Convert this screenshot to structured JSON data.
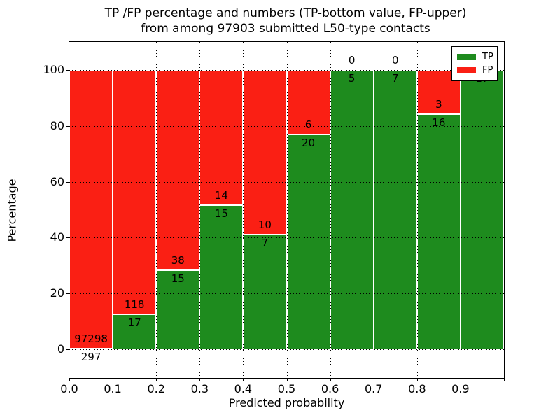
{
  "title": {
    "line1": "TP /FP percentage and numbers (TP-bottom value, FP-upper)",
    "line2": "from among 97903 submitted L50-type contacts"
  },
  "chart_data": {
    "type": "bar",
    "stacked": true,
    "normalized_to_percent": true,
    "title": "TP /FP percentage and numbers (TP-bottom value, FP-upper) from among 97903 submitted L50-type contacts",
    "xlabel": "Predicted probability",
    "ylabel": "Percentage",
    "bin_edges": [
      0.0,
      0.1,
      0.2,
      0.3,
      0.4,
      0.5,
      0.6,
      0.7,
      0.8,
      0.9,
      1.0
    ],
    "series": [
      {
        "name": "TP",
        "color": "#1e8b1e",
        "values": [
          297,
          17,
          15,
          15,
          7,
          20,
          5,
          7,
          16,
          17
        ]
      },
      {
        "name": "FP",
        "color": "#fa1f14",
        "values": [
          97298,
          118,
          38,
          14,
          10,
          6,
          0,
          0,
          3,
          0
        ]
      }
    ],
    "tp_percent_per_bin": [
      0.3,
      12.6,
      28.3,
      51.7,
      41.2,
      76.9,
      100,
      100,
      84.2,
      100
    ],
    "xticks": [
      "0.0",
      "0.1",
      "0.2",
      "0.3",
      "0.4",
      "0.5",
      "0.6",
      "0.7",
      "0.8",
      "0.9"
    ],
    "yticks": [
      0,
      20,
      40,
      60,
      80,
      100
    ],
    "xlim": [
      0.0,
      1.0
    ],
    "ylim": [
      -10,
      110
    ],
    "grid": true,
    "legend": {
      "position": "upper right",
      "entries": [
        "TP",
        "FP"
      ]
    }
  },
  "axis_colors": {
    "grid": "#000000",
    "frame": "#000000",
    "bar_edge": "#ffffff"
  }
}
